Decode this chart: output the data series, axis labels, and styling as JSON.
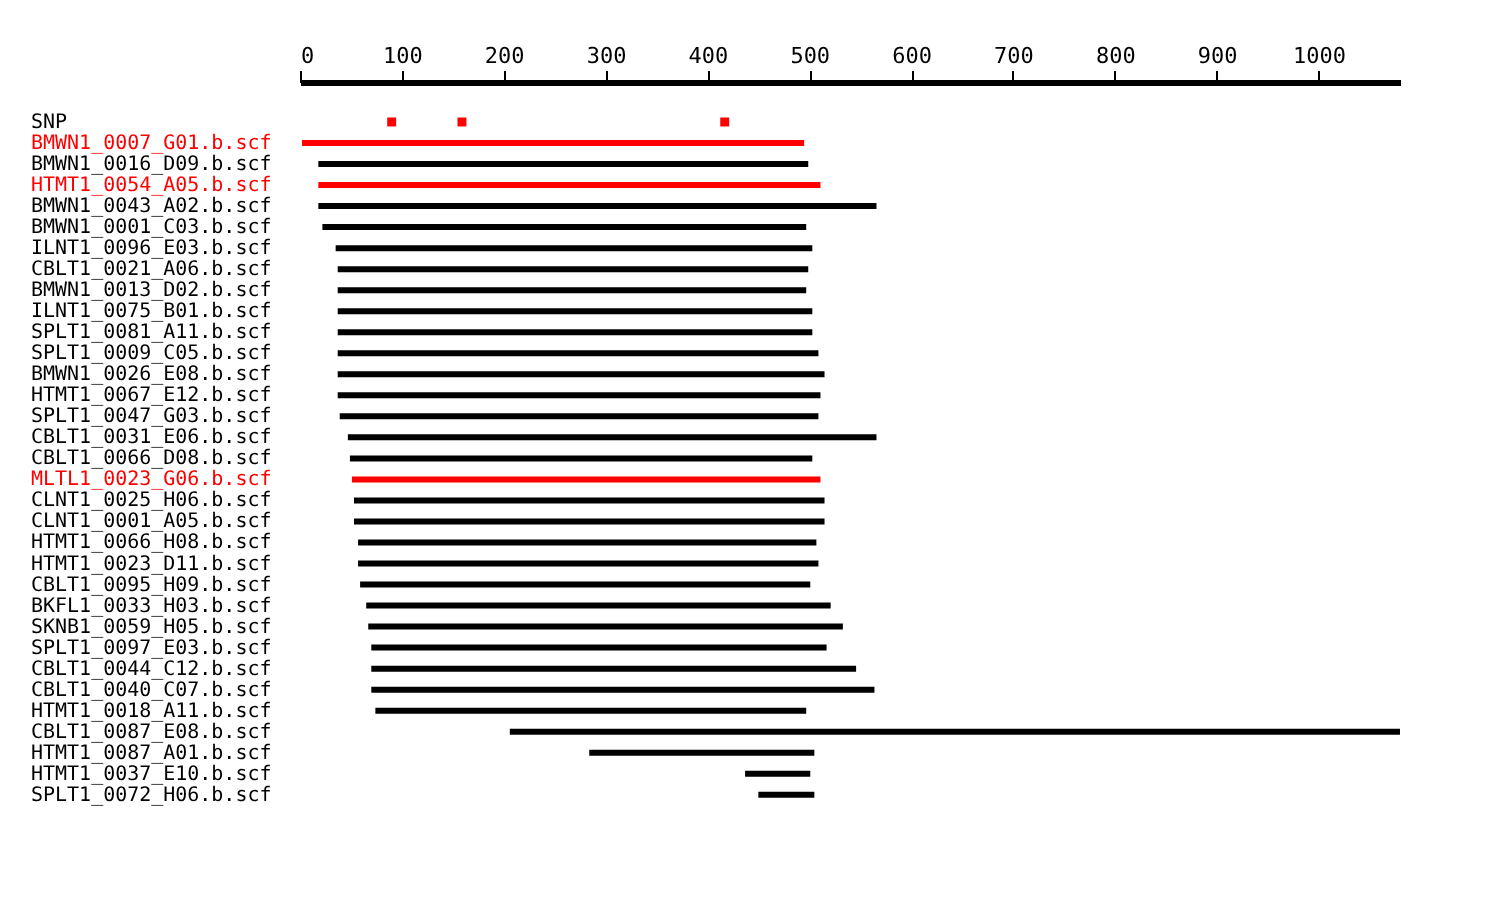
{
  "chart_data": {
    "type": "bar",
    "orientation": "horizontal",
    "xlim": [
      0,
      1080
    ],
    "xticks": [
      0,
      100,
      200,
      300,
      400,
      500,
      600,
      700,
      800,
      900,
      1000
    ],
    "categories": [
      "SNP",
      "BMWN1_0007_G01.b.scf",
      "BMWN1_0016_D09.b.scf",
      "HTMT1_0054_A05.b.scf",
      "BMWN1_0043_A02.b.scf",
      "BMWN1_0001_C03.b.scf",
      "ILNT1_0096_E03.b.scf",
      "CBLT1_0021_A06.b.scf",
      "BMWN1_0013_D02.b.scf",
      "ILNT1_0075_B01.b.scf",
      "SPLT1_0081_A11.b.scf",
      "SPLT1_0009_C05.b.scf",
      "BMWN1_0026_E08.b.scf",
      "HTMT1_0067_E12.b.scf",
      "SPLT1_0047_G03.b.scf",
      "CBLT1_0031_E06.b.scf",
      "CBLT1_0066_D08.b.scf",
      "MLTL1_0023_G06.b.scf",
      "CLNT1_0025_H06.b.scf",
      "CLNT1_0001_A05.b.scf",
      "HTMT1_0066_H08.b.scf",
      "HTMT1_0023_D11.b.scf",
      "CBLT1_0095_H09.b.scf",
      "BKFL1_0033_H03.b.scf",
      "SKNB1_0059_H05.b.scf",
      "SPLT1_0097_E03.b.scf",
      "CBLT1_0044_C12.b.scf",
      "CBLT1_0040_C07.b.scf",
      "HTMT1_0018_A11.b.scf",
      "CBLT1_0087_E08.b.scf",
      "HTMT1_0087_A01.b.scf",
      "HTMT1_0037_E10.b.scf",
      "SPLT1_0072_H06.b.scf"
    ],
    "series": [
      {
        "base": [
          null,
          2,
          18,
          18,
          18,
          22,
          35,
          37,
          37,
          37,
          37,
          37,
          37,
          37,
          39,
          47,
          49,
          51,
          53,
          53,
          57,
          57,
          59,
          65,
          67,
          70,
          70,
          70,
          74,
          206,
          284,
          437,
          450
        ],
        "values": [
          null,
          493,
          481,
          493,
          548,
          475,
          468,
          462,
          460,
          466,
          466,
          472,
          478,
          474,
          470,
          519,
          454,
          460,
          462,
          462,
          450,
          452,
          442,
          456,
          466,
          447,
          476,
          494,
          423,
          874,
          221,
          64,
          55
        ],
        "colors": [
          null,
          "#ff0000",
          "#000000",
          "#ff0000",
          "#000000",
          "#000000",
          "#000000",
          "#000000",
          "#000000",
          "#000000",
          "#000000",
          "#000000",
          "#000000",
          "#000000",
          "#000000",
          "#000000",
          "#000000",
          "#ff0000",
          "#000000",
          "#000000",
          "#000000",
          "#000000",
          "#000000",
          "#000000",
          "#000000",
          "#000000",
          "#000000",
          "#000000",
          "#000000",
          "#000000",
          "#000000",
          "#000000",
          "#000000"
        ]
      },
      {
        "type": "scatter",
        "x": [
          "SNP",
          "SNP",
          "SNP"
        ],
        "values": [
          90,
          159,
          417
        ],
        "color": "#ff0000",
        "marker": "square"
      }
    ]
  }
}
